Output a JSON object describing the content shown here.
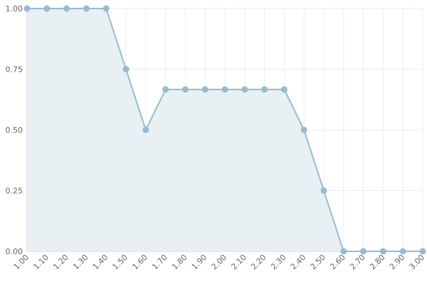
{
  "chart_data": {
    "type": "area",
    "title": "",
    "xlabel": "",
    "ylabel": "",
    "x": [
      1.0,
      1.1,
      1.2,
      1.3,
      1.4,
      1.5,
      1.6,
      1.7,
      1.8,
      1.9,
      2.0,
      2.1,
      2.2,
      2.3,
      2.4,
      2.5,
      2.6,
      2.7,
      2.8,
      2.9,
      3.0
    ],
    "x_tick_labels": [
      "1.00",
      "1.10",
      "1.20",
      "1.30",
      "1.40",
      "1.50",
      "1.60",
      "1.70",
      "1.80",
      "1.90",
      "2.00",
      "2.10",
      "2.20",
      "2.30",
      "2.40",
      "2.50",
      "2.60",
      "2.70",
      "2.80",
      "2.90",
      "3.00"
    ],
    "y_ticks": [
      0,
      0.25,
      0.5,
      0.75,
      1.0
    ],
    "y_tick_labels": [
      "0.00",
      "0.25",
      "0.50",
      "0.75",
      "1.00"
    ],
    "xlim": [
      1.0,
      3.0
    ],
    "ylim": [
      0,
      1.0
    ],
    "grid": true,
    "legend": "none",
    "series": [
      {
        "values": [
          1.0,
          1.0,
          1.0,
          1.0,
          1.0,
          0.75,
          0.5,
          0.6667,
          0.6667,
          0.6667,
          0.6667,
          0.6667,
          0.6667,
          0.6667,
          0.5,
          0.25,
          0.0,
          0.0,
          0.0,
          0.0,
          0.0
        ]
      }
    ],
    "colors": {
      "line": "#95bcd1",
      "point": "#95bcd1",
      "fill": "#e8f0f4",
      "grid": "#ececec",
      "axis": "#cccccc",
      "tick_text": "#666666"
    }
  }
}
